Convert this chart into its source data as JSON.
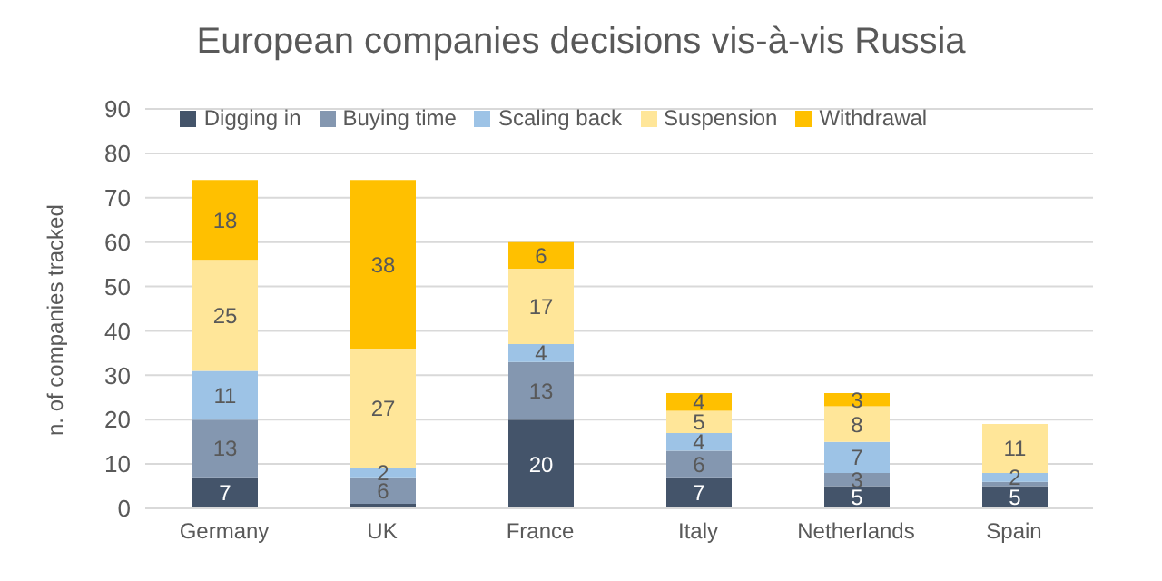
{
  "chart_data": {
    "type": "bar",
    "title": "European companies decisions vis-à-vis Russia",
    "ylabel": "n. of companies tracked",
    "categories": [
      "Germany",
      "UK",
      "France",
      "Italy",
      "Netherlands",
      "Spain"
    ],
    "stacked": true,
    "ylim": [
      0,
      90
    ],
    "yticks": [
      0,
      10,
      20,
      30,
      40,
      50,
      60,
      70,
      80,
      90
    ],
    "grid": "y",
    "legend": "top",
    "series": [
      {
        "name": "Digging in",
        "color": "#44546a",
        "values": [
          7,
          1,
          20,
          7,
          5,
          5
        ],
        "value_labels": [
          "7",
          null,
          "20",
          "7",
          "5",
          "5"
        ]
      },
      {
        "name": "Buying time",
        "color": "#8497b0",
        "values": [
          13,
          6,
          13,
          6,
          3,
          1
        ],
        "value_labels": [
          "13",
          "6",
          "13",
          "6",
          "3",
          null
        ]
      },
      {
        "name": "Scaling back",
        "color": "#9dc3e6",
        "values": [
          11,
          2,
          4,
          4,
          7,
          2
        ],
        "value_labels": [
          "11",
          "2",
          "4",
          "4",
          "7",
          "2"
        ]
      },
      {
        "name": "Suspension",
        "color": "#ffe699",
        "values": [
          25,
          27,
          17,
          5,
          8,
          11
        ],
        "value_labels": [
          "25",
          "27",
          "17",
          "5",
          "8",
          "11"
        ]
      },
      {
        "name": "Withdrawal",
        "color": "#ffc000",
        "values": [
          18,
          38,
          6,
          4,
          3,
          0
        ],
        "value_labels": [
          "18",
          "38",
          "6",
          "4",
          "3",
          null
        ]
      }
    ]
  }
}
